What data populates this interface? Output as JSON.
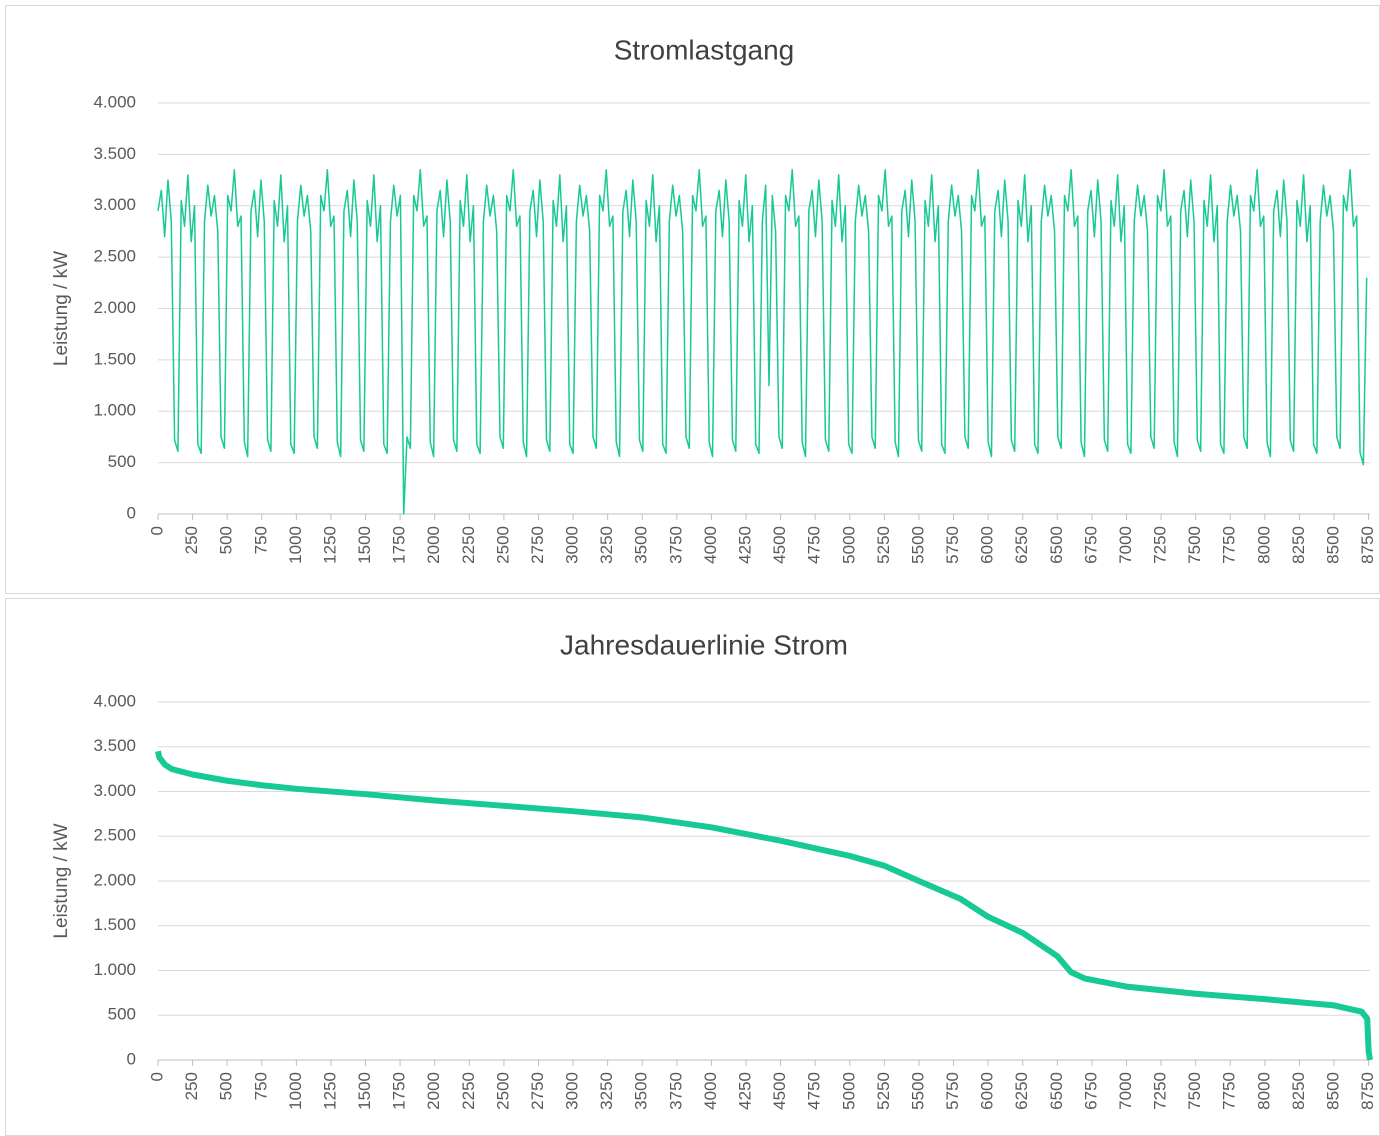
{
  "chart_data": [
    {
      "type": "line",
      "title": "Stromlastgang",
      "y_label": "Leistung / kW",
      "color": "#17c994",
      "x": [
        0,
        24,
        48,
        72,
        96,
        120,
        144,
        168,
        192,
        216,
        240,
        264,
        288,
        312,
        336,
        360,
        384,
        408,
        432,
        456,
        480,
        504,
        528,
        552,
        576,
        600,
        624,
        648,
        672,
        696,
        720,
        744,
        768,
        792,
        816,
        840,
        864,
        888,
        912,
        936,
        960,
        984,
        1008,
        1032,
        1056,
        1080,
        1104,
        1128,
        1152,
        1176,
        1200,
        1224,
        1248,
        1272,
        1296,
        1320,
        1344,
        1368,
        1392,
        1416,
        1440,
        1464,
        1488,
        1512,
        1536,
        1560,
        1584,
        1608,
        1632,
        1656,
        1680,
        1704,
        1728,
        1752,
        1776,
        1800,
        1824,
        1848,
        1872,
        1896,
        1920,
        1944,
        1968,
        1992,
        2016,
        2040,
        2064,
        2088,
        2112,
        2136,
        2160,
        2184,
        2208,
        2232,
        2256,
        2280,
        2304,
        2328,
        2352,
        2376,
        2400,
        2424,
        2448,
        2472,
        2496,
        2520,
        2544,
        2568,
        2592,
        2616,
        2640,
        2664,
        2688,
        2712,
        2736,
        2760,
        2784,
        2808,
        2832,
        2856,
        2880,
        2904,
        2928,
        2952,
        2976,
        3000,
        3024,
        3048,
        3072,
        3096,
        3120,
        3144,
        3168,
        3192,
        3216,
        3240,
        3264,
        3288,
        3312,
        3336,
        3360,
        3384,
        3408,
        3432,
        3456,
        3480,
        3504,
        3528,
        3552,
        3576,
        3600,
        3624,
        3648,
        3672,
        3696,
        3720,
        3744,
        3768,
        3792,
        3816,
        3840,
        3864,
        3888,
        3912,
        3936,
        3960,
        3984,
        4008,
        4032,
        4056,
        4080,
        4104,
        4128,
        4152,
        4176,
        4200,
        4224,
        4248,
        4272,
        4296,
        4320,
        4344,
        4368,
        4392,
        4416,
        4440,
        4464,
        4488,
        4512,
        4536,
        4560,
        4584,
        4608,
        4632,
        4656,
        4680,
        4704,
        4728,
        4752,
        4776,
        4800,
        4824,
        4848,
        4872,
        4896,
        4920,
        4944,
        4968,
        4992,
        5016,
        5040,
        5064,
        5088,
        5112,
        5136,
        5160,
        5184,
        5208,
        5232,
        5256,
        5280,
        5304,
        5328,
        5352,
        5376,
        5400,
        5424,
        5448,
        5472,
        5496,
        5520,
        5544,
        5568,
        5592,
        5616,
        5640,
        5664,
        5688,
        5712,
        5736,
        5760,
        5784,
        5808,
        5832,
        5856,
        5880,
        5904,
        5928,
        5952,
        5976,
        6000,
        6024,
        6048,
        6072,
        6096,
        6120,
        6144,
        6168,
        6192,
        6216,
        6240,
        6264,
        6288,
        6312,
        6336,
        6360,
        6384,
        6408,
        6432,
        6456,
        6480,
        6504,
        6528,
        6552,
        6576,
        6600,
        6624,
        6648,
        6672,
        6696,
        6720,
        6744,
        6768,
        6792,
        6816,
        6840,
        6864,
        6888,
        6912,
        6936,
        6960,
        6984,
        7008,
        7032,
        7056,
        7080,
        7104,
        7128,
        7152,
        7176,
        7200,
        7224,
        7248,
        7272,
        7296,
        7320,
        7344,
        7368,
        7392,
        7416,
        7440,
        7464,
        7488,
        7512,
        7536,
        7560,
        7584,
        7608,
        7632,
        7656,
        7680,
        7704,
        7728,
        7752,
        7776,
        7800,
        7824,
        7848,
        7872,
        7896,
        7920,
        7944,
        7968,
        7992,
        8016,
        8040,
        8064,
        8088,
        8112,
        8136,
        8160,
        8184,
        8208,
        8232,
        8256,
        8280,
        8304,
        8328,
        8352,
        8376,
        8400,
        8424,
        8448,
        8472,
        8496,
        8520,
        8544,
        8568,
        8592,
        8616,
        8640,
        8664,
        8688,
        8712,
        8736
      ],
      "values": [
        2950,
        3150,
        2700,
        3250,
        2850,
        720,
        610,
        3050,
        2800,
        3300,
        2650,
        3000,
        680,
        590,
        2850,
        3200,
        2900,
        3100,
        2750,
        750,
        640,
        3100,
        2950,
        3350,
        2800,
        2900,
        700,
        560,
        2950,
        3150,
        2700,
        3250,
        2850,
        720,
        610,
        3050,
        2800,
        3300,
        2650,
        3000,
        680,
        590,
        2850,
        3200,
        2900,
        3100,
        2750,
        750,
        640,
        3100,
        2950,
        3350,
        2800,
        2900,
        700,
        560,
        2950,
        3150,
        2700,
        3250,
        2850,
        720,
        610,
        3050,
        2800,
        3300,
        2650,
        3000,
        680,
        590,
        2850,
        3200,
        2900,
        3100,
        0,
        750,
        640,
        3100,
        2950,
        3350,
        2800,
        2900,
        700,
        560,
        2950,
        3150,
        2700,
        3250,
        2850,
        720,
        610,
        3050,
        2800,
        3300,
        2650,
        3000,
        680,
        590,
        2850,
        3200,
        2900,
        3100,
        2750,
        750,
        640,
        3100,
        2950,
        3350,
        2800,
        2900,
        700,
        560,
        2950,
        3150,
        2700,
        3250,
        2850,
        720,
        610,
        3050,
        2800,
        3300,
        2650,
        3000,
        680,
        590,
        2850,
        3200,
        2900,
        3100,
        2750,
        750,
        640,
        3100,
        2950,
        3350,
        2800,
        2900,
        700,
        560,
        2950,
        3150,
        2700,
        3250,
        2850,
        720,
        610,
        3050,
        2800,
        3300,
        2650,
        3000,
        680,
        590,
        2850,
        3200,
        2900,
        3100,
        2750,
        750,
        640,
        3100,
        2950,
        3350,
        2800,
        2900,
        700,
        560,
        2950,
        3150,
        2700,
        3250,
        2850,
        720,
        610,
        3050,
        2800,
        3300,
        2650,
        3000,
        680,
        590,
        2850,
        3200,
        1250,
        3100,
        2750,
        750,
        640,
        3100,
        2950,
        3350,
        2800,
        2900,
        700,
        560,
        2950,
        3150,
        2700,
        3250,
        2850,
        720,
        610,
        3050,
        2800,
        3300,
        2650,
        3000,
        680,
        590,
        2850,
        3200,
        2900,
        3100,
        2750,
        750,
        640,
        3100,
        2950,
        3350,
        2800,
        2900,
        700,
        560,
        2950,
        3150,
        2700,
        3250,
        2850,
        720,
        610,
        3050,
        2800,
        3300,
        2650,
        3000,
        680,
        590,
        2850,
        3200,
        2900,
        3100,
        2750,
        750,
        640,
        3100,
        2950,
        3350,
        2800,
        2900,
        700,
        560,
        2950,
        3150,
        2700,
        3250,
        2850,
        720,
        610,
        3050,
        2800,
        3300,
        2650,
        3000,
        680,
        590,
        2850,
        3200,
        2900,
        3100,
        2750,
        750,
        640,
        3100,
        2950,
        3350,
        2800,
        2900,
        700,
        560,
        2950,
        3150,
        2700,
        3250,
        2850,
        720,
        610,
        3050,
        2800,
        3300,
        2650,
        3000,
        680,
        590,
        2850,
        3200,
        2900,
        3100,
        2750,
        750,
        640,
        3100,
        2950,
        3350,
        2800,
        2900,
        700,
        560,
        2950,
        3150,
        2700,
        3250,
        2850,
        720,
        610,
        3050,
        2800,
        3300,
        2650,
        3000,
        680,
        590,
        2850,
        3200,
        2900,
        3100,
        2750,
        750,
        640,
        3100,
        2950,
        3350,
        2800,
        2900,
        700,
        560,
        2950,
        3150,
        2700,
        3250,
        2850,
        720,
        610,
        3050,
        2800,
        3300,
        2650,
        3000,
        680,
        590,
        2850,
        3200,
        2900,
        3100,
        2750,
        750,
        640,
        3100,
        2950,
        3350,
        2800,
        2900,
        600,
        480,
        2300
      ],
      "xlim": [
        0,
        8760
      ],
      "ylim": [
        0,
        4000
      ],
      "xticks": [
        0,
        250,
        500,
        750,
        1000,
        1250,
        1500,
        1750,
        2000,
        2250,
        2500,
        2750,
        3000,
        3250,
        3500,
        3750,
        4000,
        4250,
        4500,
        4750,
        5000,
        5250,
        5500,
        5750,
        6000,
        6250,
        6500,
        6750,
        7000,
        7250,
        7500,
        7750,
        8000,
        8250,
        8500,
        8750
      ],
      "yticks": [
        0,
        500,
        {
          "value": 1000,
          "label": "1.000"
        },
        {
          "value": 1500,
          "label": "1.500"
        },
        {
          "value": 2000,
          "label": "2.000"
        },
        {
          "value": 2500,
          "label": "2.500"
        },
        {
          "value": 3000,
          "label": "3.000"
        },
        {
          "value": 3500,
          "label": "3.500"
        },
        {
          "value": 4000,
          "label": "4.000"
        }
      ],
      "grid": true
    },
    {
      "type": "line",
      "title": "Jahresdauerlinie Strom",
      "y_label": "Leistung / kW",
      "color": "#17c994",
      "x": [
        0,
        10,
        50,
        100,
        250,
        500,
        750,
        1000,
        1500,
        2000,
        2500,
        3000,
        3500,
        4000,
        4500,
        5000,
        5250,
        5500,
        5800,
        6000,
        6250,
        6500,
        6600,
        6700,
        7000,
        7500,
        8000,
        8500,
        8700,
        8740,
        8750,
        8760
      ],
      "values": [
        3450,
        3380,
        3300,
        3250,
        3190,
        3120,
        3070,
        3030,
        2970,
        2900,
        2840,
        2780,
        2710,
        2600,
        2450,
        2280,
        2170,
        2000,
        1800,
        1600,
        1420,
        1160,
        980,
        910,
        820,
        740,
        680,
        610,
        540,
        460,
        100,
        0
      ],
      "xlim": [
        0,
        8760
      ],
      "ylim": [
        0,
        4000
      ],
      "xticks": [
        0,
        250,
        500,
        750,
        1000,
        1250,
        1500,
        1750,
        2000,
        2250,
        2500,
        2750,
        3000,
        3250,
        3500,
        3750,
        4000,
        4250,
        4500,
        4750,
        5000,
        5250,
        5500,
        5750,
        6000,
        6250,
        6500,
        6750,
        7000,
        7250,
        7500,
        7750,
        8000,
        8250,
        8500,
        8750
      ],
      "yticks": [
        0,
        500,
        {
          "value": 1000,
          "label": "1.000"
        },
        {
          "value": 1500,
          "label": "1.500"
        },
        {
          "value": 2000,
          "label": "2.000"
        },
        {
          "value": 2500,
          "label": "2.500"
        },
        {
          "value": 3000,
          "label": "3.000"
        },
        {
          "value": 3500,
          "label": "3.500"
        },
        {
          "value": 4000,
          "label": "4.000"
        }
      ],
      "grid": true
    }
  ]
}
